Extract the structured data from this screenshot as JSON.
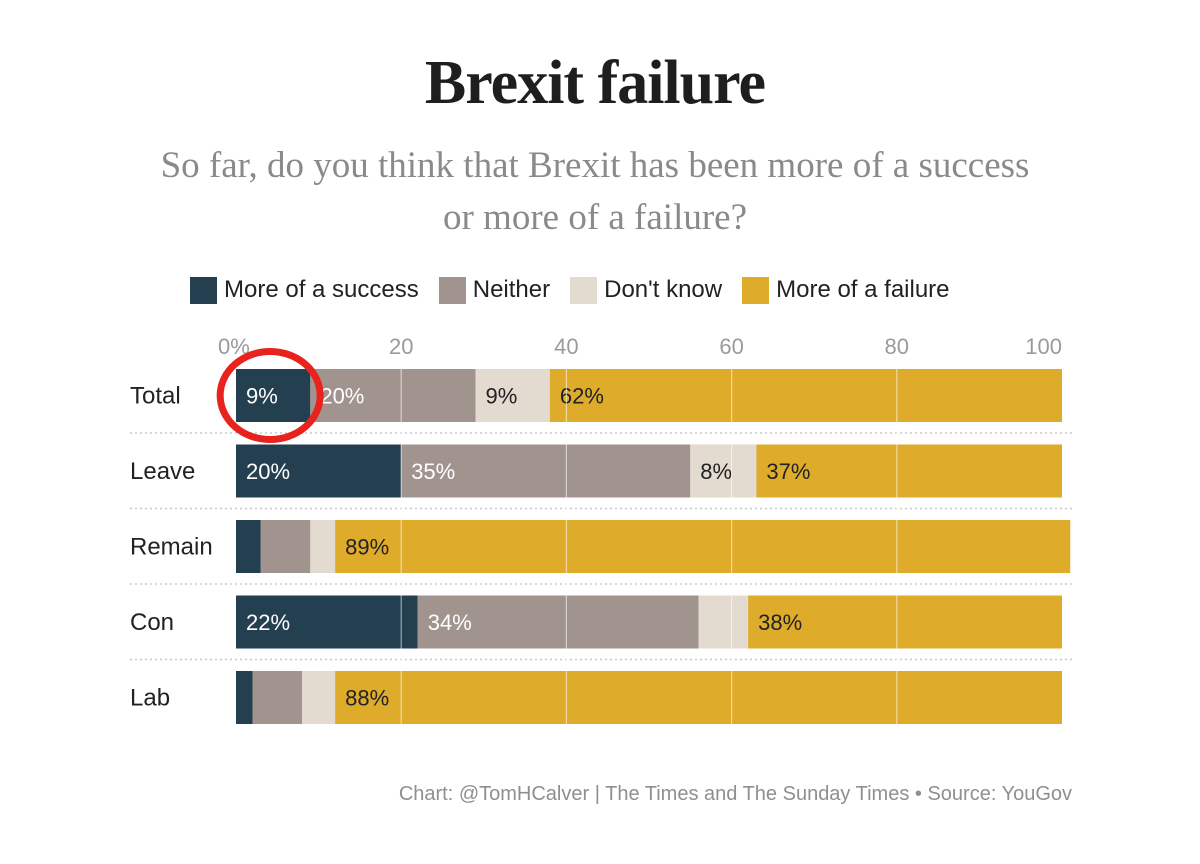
{
  "chart_data": {
    "type": "bar",
    "orientation": "horizontal",
    "stacked": true,
    "title": "Brexit failure",
    "subtitle": "So far, do you think that Brexit has been more of a success or more of a failure?",
    "subtitle_lines": [
      "So far, do you think that Brexit has been more of a success",
      "or more of a failure?"
    ],
    "categories": [
      "Total",
      "Leave",
      "Remain",
      "Con",
      "Lab"
    ],
    "series": [
      {
        "name": "More of a success",
        "color": "#243f50",
        "values": [
          9,
          20,
          3,
          22,
          2
        ],
        "labels": [
          "9%",
          "20%",
          "",
          "22%",
          ""
        ]
      },
      {
        "name": "Neither",
        "color": "#a1948f",
        "values": [
          20,
          35,
          6,
          34,
          6
        ],
        "labels": [
          "20%",
          "35%",
          "",
          "34%",
          ""
        ]
      },
      {
        "name": "Don't know",
        "color": "#e3dad0",
        "values": [
          9,
          8,
          3,
          6,
          4
        ],
        "labels": [
          "9%",
          "8%",
          "",
          "",
          ""
        ]
      },
      {
        "name": "More of a failure",
        "color": "#dfab2b",
        "values": [
          62,
          37,
          89,
          38,
          88
        ],
        "labels": [
          "62%",
          "37%",
          "89%",
          "38%",
          "88%"
        ]
      }
    ],
    "xlim": [
      0,
      100
    ],
    "xticks": [
      0,
      20,
      40,
      60,
      80,
      100
    ],
    "xtick_labels": [
      "0%",
      "20",
      "40",
      "60",
      "80",
      "100"
    ],
    "legend_position": "top",
    "highlight": {
      "category": "Total",
      "series": "More of a success",
      "color": "#e8231e"
    },
    "source": "Chart: @TomHCalver | The Times and The Sunday Times • Source: YouGov"
  }
}
